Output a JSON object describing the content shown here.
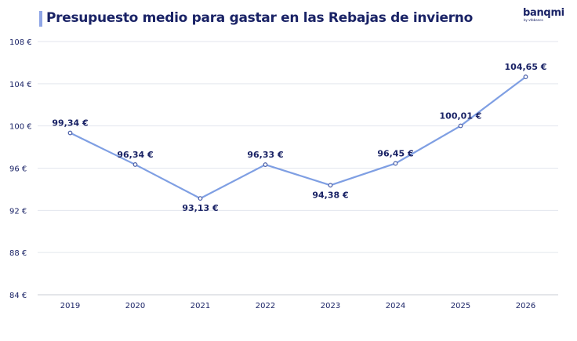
{
  "chart_data": {
    "type": "line",
    "title": "Presupuesto medio para gastar en las Rebajas de invierno",
    "categories": [
      "2019",
      "2020",
      "2021",
      "2022",
      "2023",
      "2024",
      "2025",
      "2026"
    ],
    "series": [
      {
        "values": [
          99.34,
          96.34,
          93.13,
          96.33,
          94.38,
          96.45,
          100.01,
          104.65
        ],
        "color": "#7f9fe3"
      }
    ],
    "data_labels": [
      "99,34 €",
      "96,34 €",
      "93,13 €",
      "96,33 €",
      "94,38 €",
      "96,45 €",
      "100,01 €",
      "104,65 €"
    ],
    "yticks": [
      84,
      88,
      92,
      96,
      100,
      104,
      108
    ],
    "ytick_labels": [
      "84 €",
      "88 €",
      "92 €",
      "96 €",
      "100 €",
      "104 €",
      "108 €"
    ],
    "ylim": [
      84,
      108
    ],
    "grid": true,
    "xlabel": "",
    "ylabel": ""
  },
  "logo": {
    "text": "banqmi",
    "subtext": "by vtbbanco"
  }
}
